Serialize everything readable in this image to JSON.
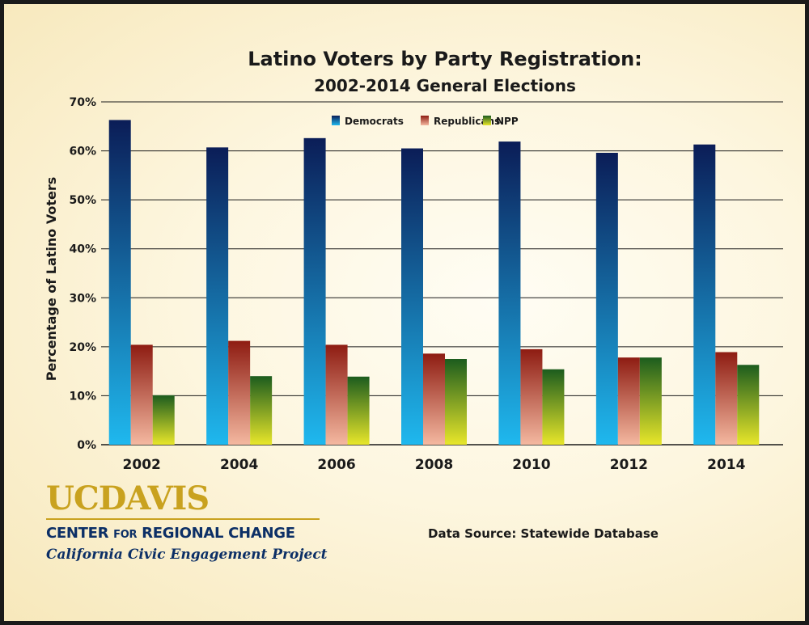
{
  "chart_data": {
    "type": "bar",
    "title": "Latino Voters by Party Registration:",
    "subtitle": "2002-2014 General Elections",
    "ylabel": "Percentage of Latino Voters",
    "xlabel": "",
    "categories": [
      "2002",
      "2004",
      "2006",
      "2008",
      "2010",
      "2012",
      "2014"
    ],
    "series": [
      {
        "name": "Democrats",
        "values": [
          66.3,
          60.7,
          62.6,
          60.5,
          61.9,
          59.6,
          61.3
        ],
        "color_top": "#0b1d57",
        "color_bottom": "#1fb8ee"
      },
      {
        "name": "Republicans",
        "values": [
          20.4,
          21.2,
          20.4,
          18.6,
          19.5,
          17.8,
          18.9
        ],
        "color_top": "#8e1c12",
        "color_bottom": "#f4b8a0"
      },
      {
        "name": "NPP",
        "values": [
          10.1,
          14.0,
          13.9,
          17.5,
          15.4,
          17.8,
          16.3
        ],
        "color_top": "#1c5c1e",
        "color_bottom": "#e8e62a"
      }
    ],
    "y_ticks": [
      "0%",
      "10%",
      "20%",
      "30%",
      "40%",
      "50%",
      "60%",
      "70%"
    ],
    "ylim": [
      0,
      70
    ],
    "grid": true,
    "legend_position": "top-center"
  },
  "logo": {
    "uc": "UC",
    "davis": "DAVIS",
    "center_a": "CENTER ",
    "center_b": "FOR",
    "center_c": " REGIONAL CHANGE",
    "project": "California Civic Engagement Project"
  },
  "source": "Data Source: Statewide Database"
}
